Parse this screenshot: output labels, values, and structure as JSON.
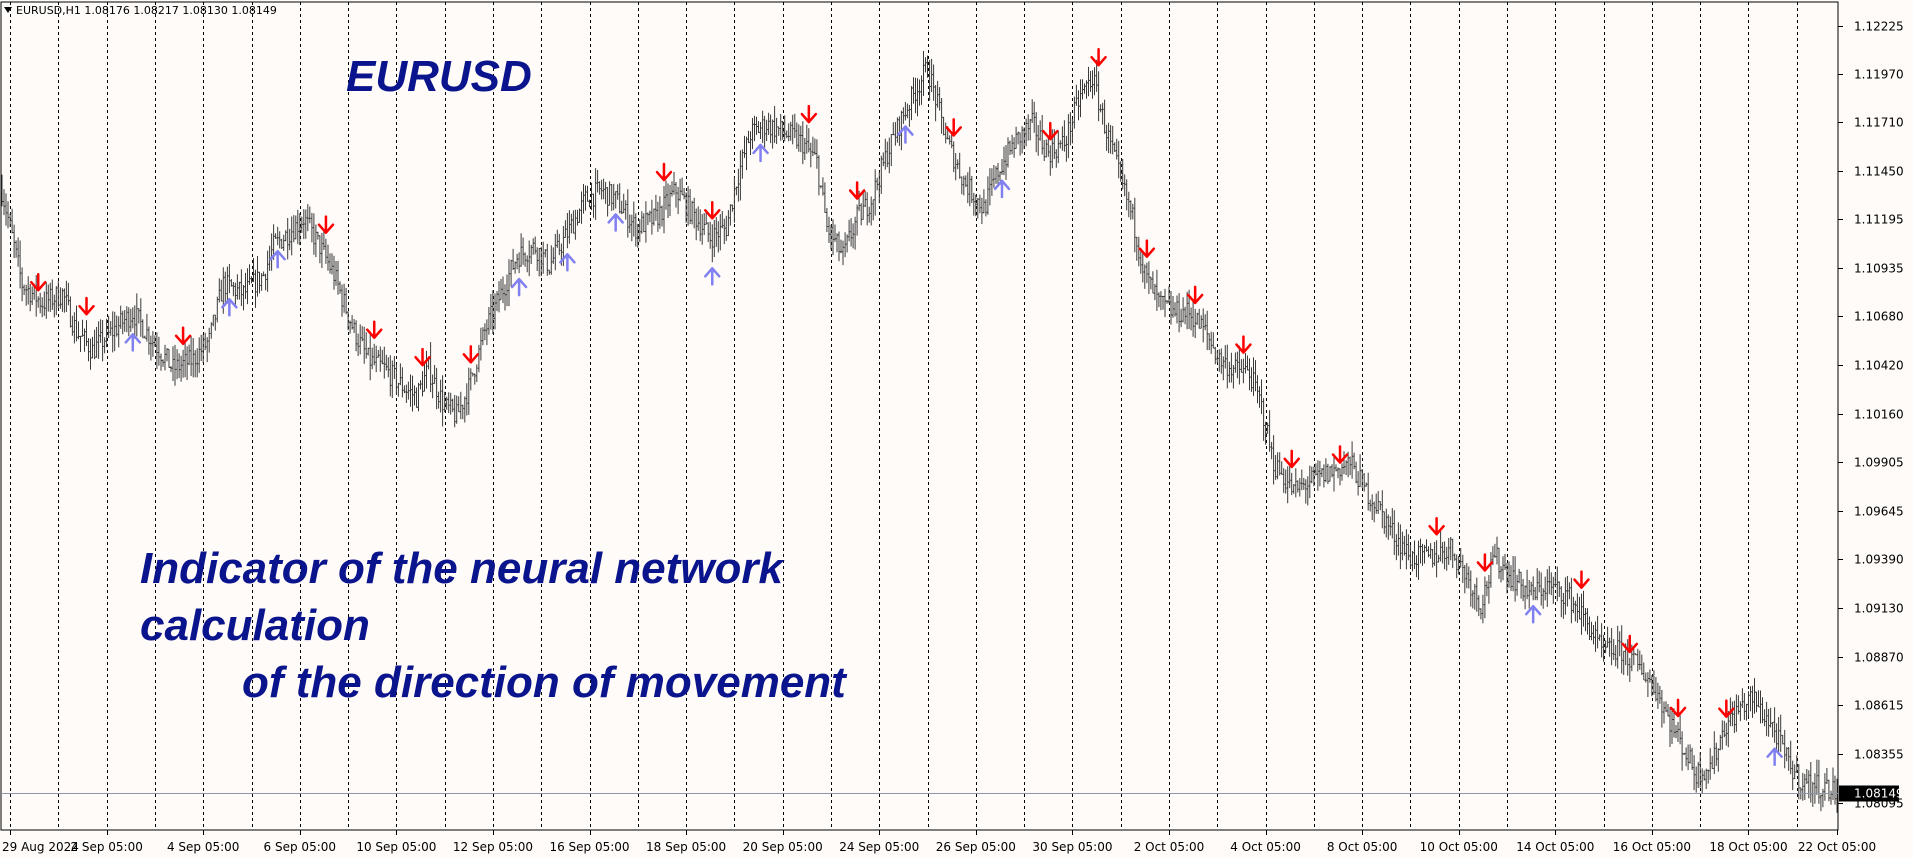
{
  "header": {
    "symbol_label": "EURUSD,H1",
    "ohlc_label": "1.08176 1.08217 1.08130 1.08149"
  },
  "title": "EURUSD",
  "caption": {
    "line1": "Indicator of the neural network calculation",
    "line2": "of the direction of movement"
  },
  "colors": {
    "background": "#fffbf8",
    "candles": "#3a3a3a",
    "arrow_down": "#ff0000",
    "arrow_up": "#8080f0",
    "text_accent": "#0a148c",
    "grid": "#000000",
    "current_price_line": "#8c98a8"
  },
  "chart_data": {
    "type": "bar",
    "symbol": "EURUSD",
    "timeframe": "H1",
    "current_price": 1.08149,
    "ylim": [
      1.0795,
      1.1235
    ],
    "y_ticks": [
      "1.12225",
      "1.11970",
      "1.11710",
      "1.11450",
      "1.11195",
      "1.10935",
      "1.10680",
      "1.10420",
      "1.10160",
      "1.09905",
      "1.09645",
      "1.09390",
      "1.09130",
      "1.08870",
      "1.08615",
      "1.08355",
      "1.08095"
    ],
    "current_price_label": "1.08149",
    "x_ticks": [
      "29 Aug 2024",
      "2 Sep 05:00",
      "4 Sep 05:00",
      "6 Sep 05:00",
      "10 Sep 05:00",
      "12 Sep 05:00",
      "16 Sep 05:00",
      "18 Sep 05:00",
      "20 Sep 05:00",
      "24 Sep 05:00",
      "26 Sep 05:00",
      "30 Sep 05:00",
      "2 Oct 05:00",
      "4 Oct 05:00",
      "8 Oct 05:00",
      "10 Oct 05:00",
      "14 Oct 05:00",
      "16 Oct 05:00",
      "18 Oct 05:00",
      "22 Oct 05:00"
    ],
    "price_path": [
      [
        0,
        1.1135
      ],
      [
        5,
        1.111
      ],
      [
        10,
        1.1085
      ],
      [
        20,
        1.1075
      ],
      [
        30,
        1.108
      ],
      [
        37,
        1.106
      ],
      [
        45,
        1.105
      ],
      [
        55,
        1.106
      ],
      [
        65,
        1.107
      ],
      [
        75,
        1.1055
      ],
      [
        85,
        1.104
      ],
      [
        95,
        1.1045
      ],
      [
        103,
        1.1055
      ],
      [
        110,
        1.1085
      ],
      [
        120,
        1.108
      ],
      [
        130,
        1.109
      ],
      [
        135,
        1.1105
      ],
      [
        145,
        1.1115
      ],
      [
        150,
        1.112
      ],
      [
        158,
        1.1105
      ],
      [
        165,
        1.109
      ],
      [
        175,
        1.106
      ],
      [
        182,
        1.1045
      ],
      [
        190,
        1.104
      ],
      [
        200,
        1.103
      ],
      [
        206,
        1.1025
      ],
      [
        212,
        1.104
      ],
      [
        220,
        1.102
      ],
      [
        226,
        1.1015
      ],
      [
        232,
        1.103
      ],
      [
        240,
        1.106
      ],
      [
        248,
        1.108
      ],
      [
        256,
        1.11
      ],
      [
        265,
        1.1105
      ],
      [
        272,
        1.1095
      ],
      [
        280,
        1.111
      ],
      [
        290,
        1.113
      ],
      [
        298,
        1.1135
      ],
      [
        305,
        1.113
      ],
      [
        315,
        1.1115
      ],
      [
        325,
        1.112
      ],
      [
        335,
        1.1135
      ],
      [
        345,
        1.112
      ],
      [
        352,
        1.111
      ],
      [
        360,
        1.1115
      ],
      [
        365,
        1.114
      ],
      [
        372,
        1.1165
      ],
      [
        380,
        1.117
      ],
      [
        390,
        1.1165
      ],
      [
        398,
        1.116
      ],
      [
        405,
        1.115
      ],
      [
        410,
        1.1115
      ],
      [
        418,
        1.11
      ],
      [
        425,
        1.112
      ],
      [
        432,
        1.113
      ],
      [
        440,
        1.1155
      ],
      [
        448,
        1.1175
      ],
      [
        455,
        1.119
      ],
      [
        460,
        1.12
      ],
      [
        465,
        1.118
      ],
      [
        470,
        1.116
      ],
      [
        478,
        1.114
      ],
      [
        488,
        1.1125
      ],
      [
        495,
        1.1145
      ],
      [
        503,
        1.116
      ],
      [
        512,
        1.117
      ],
      [
        520,
        1.1155
      ],
      [
        528,
        1.116
      ],
      [
        536,
        1.1185
      ],
      [
        542,
        1.1195
      ],
      [
        548,
        1.117
      ],
      [
        552,
        1.1155
      ],
      [
        556,
        1.114
      ],
      [
        562,
        1.112
      ],
      [
        568,
        1.109
      ],
      [
        575,
        1.1075
      ],
      [
        582,
        1.107
      ],
      [
        590,
        1.107
      ],
      [
        598,
        1.106
      ],
      [
        605,
        1.1045
      ],
      [
        612,
        1.104
      ],
      [
        620,
        1.1038
      ],
      [
        626,
        1.102
      ],
      [
        632,
        1.099
      ],
      [
        642,
        1.0975
      ],
      [
        650,
        1.098
      ],
      [
        660,
        1.0985
      ],
      [
        670,
        1.099
      ],
      [
        678,
        1.0975
      ],
      [
        685,
        1.0965
      ],
      [
        690,
        1.0955
      ],
      [
        700,
        1.094
      ],
      [
        710,
        1.094
      ],
      [
        720,
        1.0945
      ],
      [
        728,
        1.093
      ],
      [
        735,
        1.0915
      ],
      [
        742,
        1.094
      ],
      [
        750,
        1.093
      ],
      [
        760,
        1.092
      ],
      [
        768,
        1.0925
      ],
      [
        778,
        1.092
      ],
      [
        788,
        1.0905
      ],
      [
        795,
        1.089
      ],
      [
        805,
        1.089
      ],
      [
        815,
        1.088
      ],
      [
        822,
        1.087
      ],
      [
        828,
        1.0855
      ],
      [
        835,
        1.084
      ],
      [
        842,
        1.0825
      ],
      [
        850,
        1.083
      ],
      [
        856,
        1.085
      ],
      [
        864,
        1.086
      ],
      [
        870,
        1.0865
      ],
      [
        880,
        1.085
      ],
      [
        888,
        1.083
      ],
      [
        895,
        1.082
      ],
      [
        905,
        1.0818
      ],
      [
        912,
        1.0815
      ]
    ],
    "signals": [
      {
        "i": 18,
        "dir": "down"
      },
      {
        "i": 42,
        "dir": "down"
      },
      {
        "i": 65,
        "dir": "up"
      },
      {
        "i": 90,
        "dir": "down"
      },
      {
        "i": 113,
        "dir": "up"
      },
      {
        "i": 137,
        "dir": "up"
      },
      {
        "i": 161,
        "dir": "down"
      },
      {
        "i": 185,
        "dir": "down"
      },
      {
        "i": 209,
        "dir": "down"
      },
      {
        "i": 233,
        "dir": "down"
      },
      {
        "i": 257,
        "dir": "up"
      },
      {
        "i": 281,
        "dir": "up"
      },
      {
        "i": 305,
        "dir": "up"
      },
      {
        "i": 329,
        "dir": "down"
      },
      {
        "i": 353,
        "dir": "down"
      },
      {
        "i": 353,
        "dir": "up"
      },
      {
        "i": 377,
        "dir": "up"
      },
      {
        "i": 401,
        "dir": "down"
      },
      {
        "i": 425,
        "dir": "down"
      },
      {
        "i": 449,
        "dir": "up"
      },
      {
        "i": 473,
        "dir": "down"
      },
      {
        "i": 497,
        "dir": "up"
      },
      {
        "i": 521,
        "dir": "down"
      },
      {
        "i": 545,
        "dir": "down"
      },
      {
        "i": 569,
        "dir": "down"
      },
      {
        "i": 593,
        "dir": "down"
      },
      {
        "i": 617,
        "dir": "down"
      },
      {
        "i": 641,
        "dir": "down"
      },
      {
        "i": 665,
        "dir": "down"
      },
      {
        "i": 713,
        "dir": "down"
      },
      {
        "i": 737,
        "dir": "down"
      },
      {
        "i": 761,
        "dir": "up"
      },
      {
        "i": 785,
        "dir": "down"
      },
      {
        "i": 809,
        "dir": "down"
      },
      {
        "i": 833,
        "dir": "down"
      },
      {
        "i": 857,
        "dir": "down"
      },
      {
        "i": 881,
        "dir": "up"
      }
    ],
    "bars_total": 913,
    "grid": true
  }
}
